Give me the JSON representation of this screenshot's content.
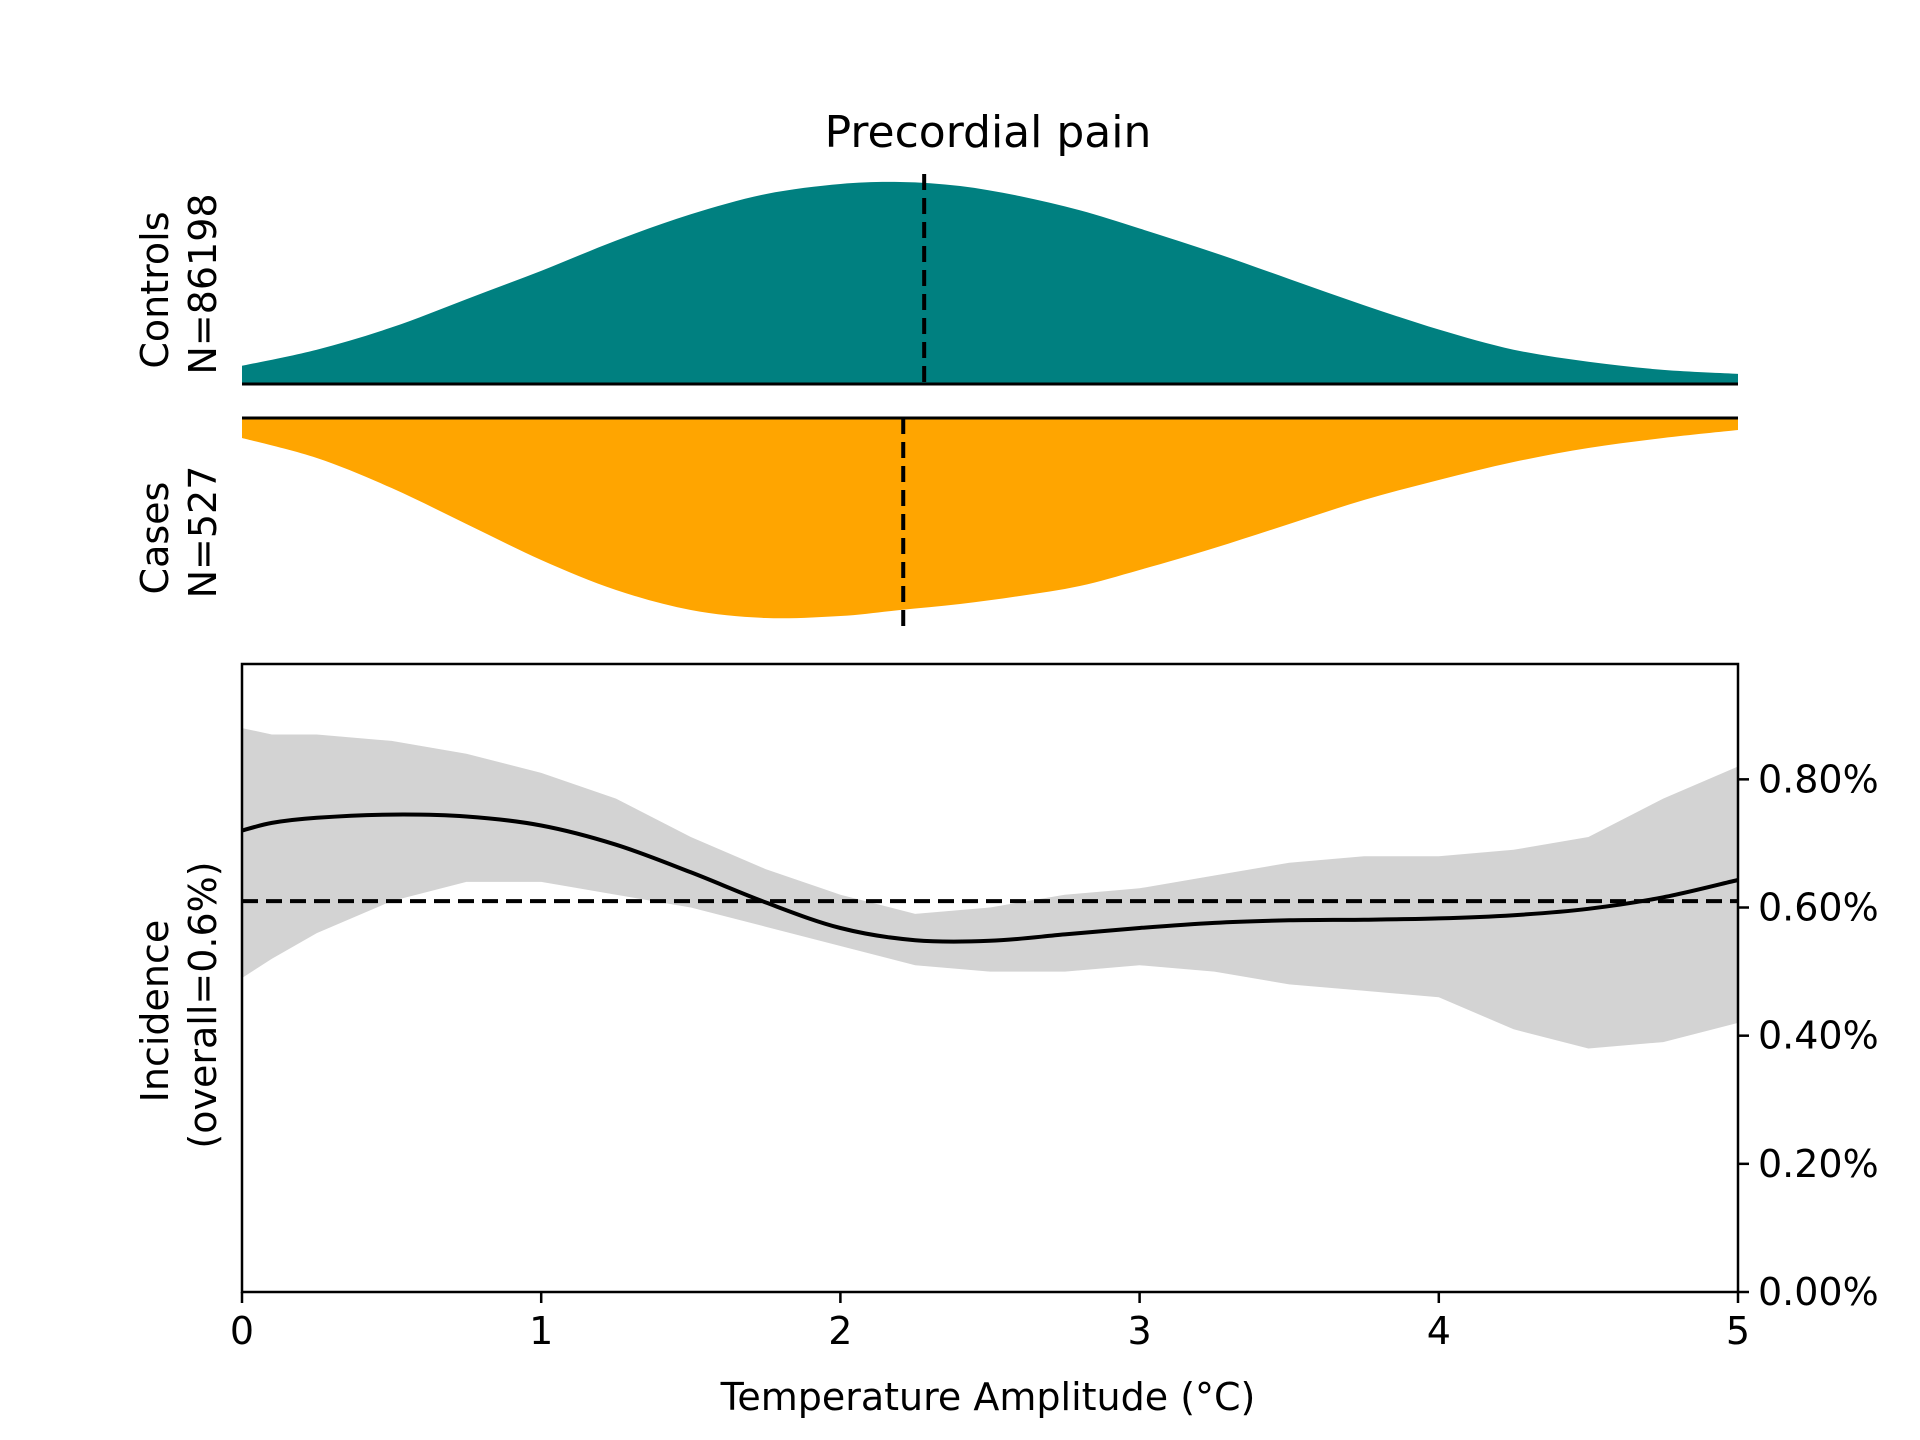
{
  "chart_data": [
    {
      "type": "area",
      "title": "Precordial pain",
      "ylabel_line1": "Controls",
      "ylabel_line2": "N=86198",
      "color": "#008080",
      "xlim": [
        0,
        5
      ],
      "ylim": [
        0,
        1
      ],
      "median": 2.28,
      "x": [
        0,
        0.25,
        0.5,
        0.75,
        1.0,
        1.25,
        1.5,
        1.75,
        2.0,
        2.2,
        2.4,
        2.6,
        2.8,
        3.0,
        3.25,
        3.5,
        3.75,
        4.0,
        4.25,
        4.5,
        4.75,
        5.0
      ],
      "density": [
        0.09,
        0.17,
        0.28,
        0.42,
        0.56,
        0.71,
        0.84,
        0.94,
        0.99,
        1.0,
        0.98,
        0.93,
        0.86,
        0.77,
        0.65,
        0.52,
        0.39,
        0.27,
        0.17,
        0.11,
        0.07,
        0.05
      ]
    },
    {
      "type": "area",
      "ylabel_line1": "Cases",
      "ylabel_line2": "N=527",
      "color": "#ffa500",
      "xlim": [
        0,
        5
      ],
      "ylim": [
        0,
        1
      ],
      "median": 2.21,
      "inverted": true,
      "x": [
        0,
        0.25,
        0.5,
        0.75,
        1.0,
        1.25,
        1.5,
        1.75,
        2.0,
        2.2,
        2.4,
        2.6,
        2.8,
        3.0,
        3.25,
        3.5,
        3.75,
        4.0,
        4.25,
        4.5,
        4.75,
        5.0
      ],
      "density": [
        0.1,
        0.2,
        0.35,
        0.53,
        0.71,
        0.86,
        0.96,
        1.0,
        0.99,
        0.96,
        0.93,
        0.89,
        0.84,
        0.76,
        0.65,
        0.53,
        0.41,
        0.31,
        0.22,
        0.15,
        0.1,
        0.06
      ]
    },
    {
      "type": "line",
      "ylabel_line1": "Incidence",
      "ylabel_line2": "(overall=0.6%)",
      "xlabel": "Temperature Amplitude (°C)",
      "xlim": [
        0,
        5
      ],
      "ylim": [
        0,
        0.0098
      ],
      "xticks": [
        0,
        1,
        2,
        3,
        4,
        5
      ],
      "xtick_labels": [
        "0",
        "1",
        "2",
        "3",
        "4",
        "5"
      ],
      "yticks": [
        0,
        0.002,
        0.004,
        0.006,
        0.008
      ],
      "ytick_labels": [
        "0.00%",
        "0.20%",
        "0.40%",
        "0.60%",
        "0.80%"
      ],
      "ytick_side": "right",
      "overall": 0.0061,
      "band_color": "#d3d3d3",
      "x": [
        0,
        0.1,
        0.25,
        0.5,
        0.75,
        1.0,
        1.25,
        1.5,
        1.75,
        2.0,
        2.25,
        2.5,
        2.75,
        3.0,
        3.25,
        3.5,
        3.75,
        4.0,
        4.25,
        4.5,
        4.75,
        5.0
      ],
      "incidence": [
        0.0072,
        0.00732,
        0.0074,
        0.00745,
        0.00742,
        0.00728,
        0.00698,
        0.00655,
        0.00608,
        0.00568,
        0.00549,
        0.00548,
        0.00558,
        0.00568,
        0.00576,
        0.0058,
        0.00581,
        0.00583,
        0.00588,
        0.00598,
        0.00616,
        0.00643
      ],
      "ci_upper": [
        0.0088,
        0.0087,
        0.0087,
        0.0086,
        0.0084,
        0.0081,
        0.0077,
        0.0071,
        0.0066,
        0.0062,
        0.0059,
        0.006,
        0.0062,
        0.0063,
        0.0065,
        0.0067,
        0.0068,
        0.0068,
        0.0069,
        0.0071,
        0.0077,
        0.0082
      ],
      "ci_lower": [
        0.0049,
        0.0052,
        0.0056,
        0.0061,
        0.0064,
        0.0064,
        0.0062,
        0.006,
        0.0057,
        0.0054,
        0.0051,
        0.005,
        0.005,
        0.0051,
        0.005,
        0.0048,
        0.0047,
        0.0046,
        0.0041,
        0.0038,
        0.0039,
        0.0042
      ]
    }
  ]
}
